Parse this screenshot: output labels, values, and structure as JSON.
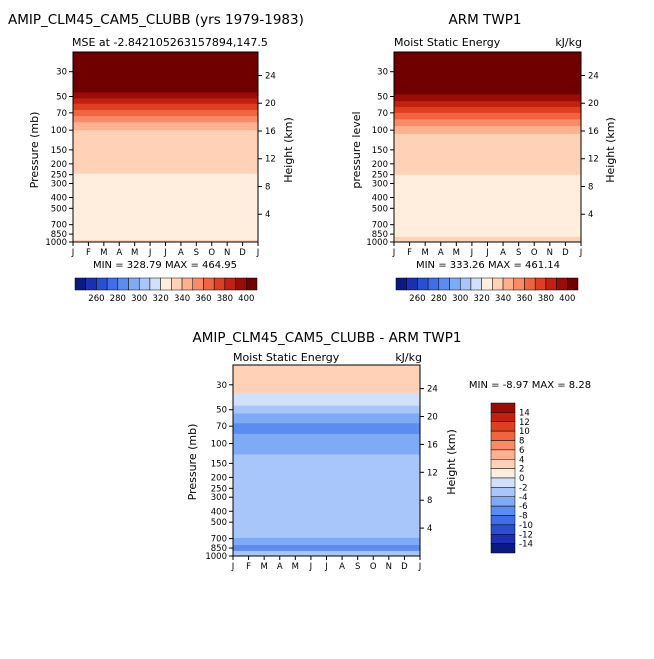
{
  "panels": [
    {
      "id": "model",
      "title": "AMIP_CLM45_CAM5_CLUBB (yrs 1979-1983)",
      "subtitle_left": "MSE at -2.842105263157894,147.5",
      "subtitle_right": "",
      "y_label": "Pressure (mb)",
      "right_label": "Height (km)",
      "minmax": "MIN = 328.79  MAX = 464.95"
    },
    {
      "id": "obs",
      "title": "ARM TWP1",
      "subtitle_left": "Moist Static Energy",
      "subtitle_right": "kJ/kg",
      "y_label": "pressure level",
      "right_label": "Height (km)",
      "minmax": "MIN = 333.26  MAX = 461.14"
    },
    {
      "id": "diff",
      "title": "AMIP_CLM45_CAM5_CLUBB - ARM TWP1",
      "subtitle_left": "Moist Static Energy",
      "subtitle_right": "kJ/kg",
      "y_label": "Pressure (mb)",
      "right_label": "Height (km)",
      "minmax": "MIN =  -8.97  MAX =   8.28"
    }
  ],
  "chart_data": {
    "type": "heatmap",
    "x_ticks": [
      "J",
      "F",
      "M",
      "A",
      "M",
      "J",
      "J",
      "A",
      "S",
      "O",
      "N",
      "D",
      "J"
    ],
    "pressure_ticks": [
      30,
      50,
      70,
      100,
      150,
      200,
      250,
      300,
      400,
      500,
      700,
      850,
      1000
    ],
    "height_ticks_km": [
      4,
      8,
      12,
      16,
      20,
      24
    ],
    "pressure_range_mb": [
      1000,
      20
    ],
    "abs_colorbar": {
      "labels": [
        "260",
        "280",
        "300",
        "320",
        "340",
        "360",
        "380",
        "400"
      ],
      "levels": [
        250,
        260,
        270,
        280,
        290,
        300,
        310,
        320,
        330,
        340,
        350,
        360,
        370,
        380,
        390,
        400
      ],
      "colors": [
        "#0a1a80",
        "#1a30b0",
        "#2850d0",
        "#3f6ee8",
        "#5c8cf0",
        "#7faaf5",
        "#a9c6fa",
        "#d2e1fb",
        "#ffeedd",
        "#ffd2b8",
        "#fdb18f",
        "#f98c66",
        "#f0643f",
        "#de3f20",
        "#c22010",
        "#9c0c07",
        "#700000"
      ]
    },
    "diff_colorbar": {
      "labels": [
        "14",
        "12",
        "10",
        "8",
        "6",
        "4",
        "2",
        "0",
        "-2",
        "-4",
        "-6",
        "-8",
        "-10",
        "-12",
        "-14"
      ],
      "colors": [
        "#9c0c07",
        "#c22010",
        "#de3f20",
        "#f0643f",
        "#f98c66",
        "#fdb18f",
        "#ffd2b8",
        "#ffeedd",
        "#d2e1fb",
        "#a9c6fa",
        "#7faaf5",
        "#5c8cf0",
        "#3f6ee8",
        "#2850d0",
        "#1a30b0",
        "#0a1a80"
      ]
    },
    "series": [
      {
        "name": "AMIP_CLM45_CAM5_CLUBB",
        "contour_bands": [
          {
            "p_top": 20,
            "p_bottom": 46,
            "value": 405
          },
          {
            "p_top": 46,
            "p_bottom": 52,
            "value": 395
          },
          {
            "p_top": 52,
            "p_bottom": 58,
            "value": 385
          },
          {
            "p_top": 58,
            "p_bottom": 66,
            "value": 375
          },
          {
            "p_top": 66,
            "p_bottom": 75,
            "value": 365
          },
          {
            "p_top": 75,
            "p_bottom": 85,
            "value": 355
          },
          {
            "p_top": 85,
            "p_bottom": 100,
            "value": 345
          },
          {
            "p_top": 100,
            "p_bottom": 245,
            "value": 335
          },
          {
            "p_top": 245,
            "p_bottom": 960,
            "value": 325
          },
          {
            "p_top": 960,
            "p_bottom": 1000,
            "value": 335
          }
        ],
        "min": 328.79,
        "max": 464.95
      },
      {
        "name": "ARM TWP1",
        "contour_bands": [
          {
            "p_top": 20,
            "p_bottom": 48,
            "value": 405
          },
          {
            "p_top": 48,
            "p_bottom": 55,
            "value": 395
          },
          {
            "p_top": 55,
            "p_bottom": 62,
            "value": 385
          },
          {
            "p_top": 62,
            "p_bottom": 70,
            "value": 375
          },
          {
            "p_top": 70,
            "p_bottom": 80,
            "value": 365
          },
          {
            "p_top": 80,
            "p_bottom": 92,
            "value": 355
          },
          {
            "p_top": 92,
            "p_bottom": 108,
            "value": 345
          },
          {
            "p_top": 108,
            "p_bottom": 250,
            "value": 335
          },
          {
            "p_top": 250,
            "p_bottom": 900,
            "value": 325
          },
          {
            "p_top": 900,
            "p_bottom": 1000,
            "value": 335
          }
        ],
        "min": 333.26,
        "max": 461.14
      },
      {
        "name": "AMIP_CLM45_CAM5_CLUBB - ARM TWP1",
        "contour_bands": [
          {
            "p_top": 20,
            "p_bottom": 36,
            "value": 3
          },
          {
            "p_top": 36,
            "p_bottom": 46,
            "value": -1
          },
          {
            "p_top": 46,
            "p_bottom": 54,
            "value": -3
          },
          {
            "p_top": 54,
            "p_bottom": 66,
            "value": -5
          },
          {
            "p_top": 66,
            "p_bottom": 82,
            "value": -7
          },
          {
            "p_top": 82,
            "p_bottom": 125,
            "value": -5
          },
          {
            "p_top": 125,
            "p_bottom": 460,
            "value": -3
          },
          {
            "p_top": 460,
            "p_bottom": 560,
            "value": -3
          },
          {
            "p_top": 560,
            "p_bottom": 690,
            "value": -3
          },
          {
            "p_top": 690,
            "p_bottom": 800,
            "value": -5
          },
          {
            "p_top": 800,
            "p_bottom": 900,
            "value": -7
          },
          {
            "p_top": 900,
            "p_bottom": 1000,
            "value": -3
          }
        ],
        "min": -8.97,
        "max": 8.28
      }
    ]
  }
}
